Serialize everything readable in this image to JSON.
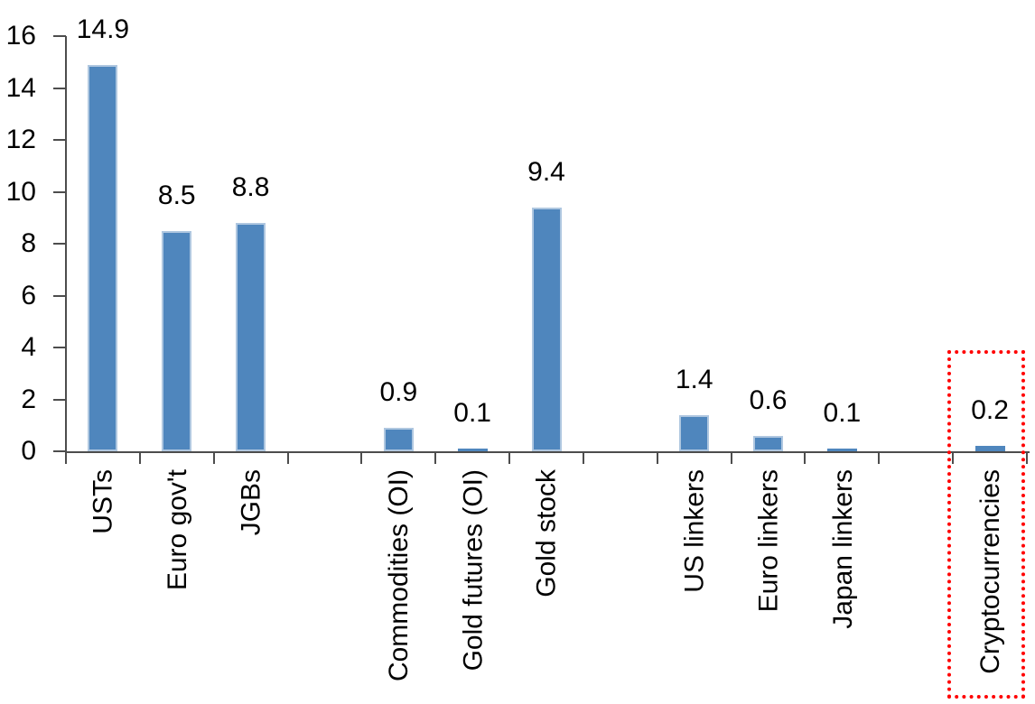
{
  "chart_data": {
    "type": "bar",
    "title": "",
    "xlabel": "",
    "ylabel": "",
    "categories": [
      "USTs",
      "Euro gov't",
      "JGBs",
      "",
      "Commodities (OI)",
      "Gold futures (OI)",
      "Gold stock",
      "",
      "US linkers",
      "Euro linkers",
      "Japan linkers",
      "",
      "Cryptocurrencies"
    ],
    "values": [
      14.9,
      8.5,
      8.8,
      null,
      0.9,
      0.1,
      9.4,
      null,
      1.4,
      0.6,
      0.1,
      null,
      0.2
    ],
    "data_labels": [
      "14.9",
      "8.5",
      "8.8",
      "",
      "0.9",
      "0.1",
      "9.4",
      "",
      "1.4",
      "0.6",
      "0.1",
      "",
      "0.2"
    ],
    "ylim": [
      0,
      16
    ],
    "yticks": [
      0,
      2,
      4,
      6,
      8,
      10,
      12,
      14,
      16
    ],
    "grid": false,
    "legend": "none",
    "bar_color": "#4F86BD",
    "bar_border_color": "#AFC7E0",
    "axis_color": "#4d4d4d",
    "text_color": "#000000",
    "annotation": {
      "type": "highlight-box",
      "target_category": "Cryptocurrencies",
      "border_color": "#FF0000",
      "border_style": "dotted"
    }
  }
}
